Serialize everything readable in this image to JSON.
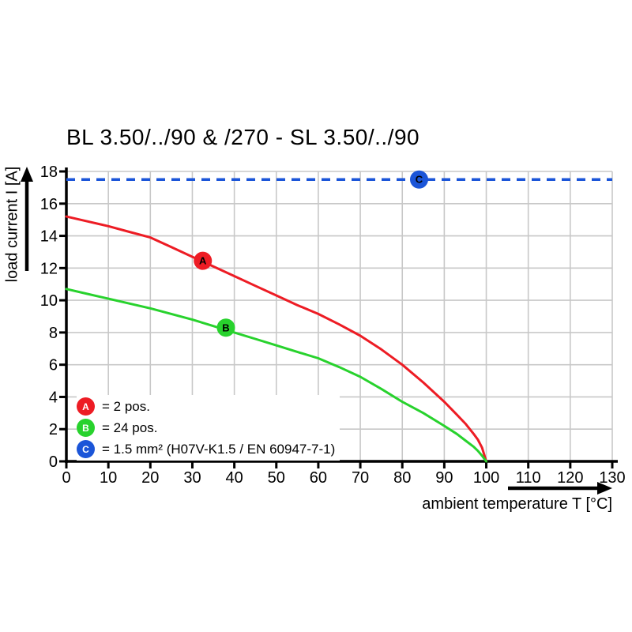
{
  "title": "BL 3.50/../90 & /270 - SL 3.50/../90",
  "colors": {
    "series_a_red": "#ed1c24",
    "series_b_green": "#28d22d",
    "series_c_blue": "#1b55d8",
    "grid": "#c8c8c8",
    "axis": "#000000"
  },
  "chart_data": {
    "type": "line",
    "title": "BL 3.50/../90 & /270 - SL 3.50/../90",
    "xlabel": "ambient temperature T [°C]",
    "ylabel": "load current I [A]",
    "xlim": [
      0,
      130
    ],
    "ylim": [
      0,
      18
    ],
    "xticks": [
      0,
      10,
      20,
      30,
      40,
      50,
      60,
      70,
      80,
      90,
      100,
      110,
      120,
      130
    ],
    "yticks": [
      0,
      2,
      4,
      6,
      8,
      10,
      12,
      14,
      16,
      18
    ],
    "grid": true,
    "legend_position": "lower-left",
    "series": [
      {
        "id": "A",
        "legend_label": "= 2 pos.",
        "color": "#ed1c24",
        "type": "curve",
        "marker": {
          "letter": "A",
          "x": 32.5,
          "y": 12.45
        },
        "points": [
          [
            0,
            15.2
          ],
          [
            5,
            14.9
          ],
          [
            10,
            14.6
          ],
          [
            15,
            14.25
          ],
          [
            20,
            13.9
          ],
          [
            25,
            13.3
          ],
          [
            30,
            12.7
          ],
          [
            35,
            12.1
          ],
          [
            40,
            11.5
          ],
          [
            45,
            10.9
          ],
          [
            50,
            10.3
          ],
          [
            55,
            9.7
          ],
          [
            60,
            9.15
          ],
          [
            65,
            8.5
          ],
          [
            70,
            7.8
          ],
          [
            75,
            6.95
          ],
          [
            80,
            6.0
          ],
          [
            85,
            4.9
          ],
          [
            90,
            3.7
          ],
          [
            93,
            2.9
          ],
          [
            95,
            2.35
          ],
          [
            97,
            1.7
          ],
          [
            98,
            1.35
          ],
          [
            99,
            0.85
          ],
          [
            100,
            0
          ]
        ]
      },
      {
        "id": "B",
        "legend_label": "= 24 pos.",
        "color": "#28d22d",
        "type": "curve",
        "marker": {
          "letter": "B",
          "x": 38,
          "y": 8.3
        },
        "points": [
          [
            0,
            10.7
          ],
          [
            5,
            10.4
          ],
          [
            10,
            10.1
          ],
          [
            15,
            9.8
          ],
          [
            20,
            9.5
          ],
          [
            25,
            9.15
          ],
          [
            30,
            8.8
          ],
          [
            35,
            8.4
          ],
          [
            40,
            8.0
          ],
          [
            45,
            7.6
          ],
          [
            50,
            7.2
          ],
          [
            55,
            6.8
          ],
          [
            60,
            6.4
          ],
          [
            65,
            5.85
          ],
          [
            70,
            5.25
          ],
          [
            75,
            4.5
          ],
          [
            80,
            3.7
          ],
          [
            85,
            3.0
          ],
          [
            90,
            2.2
          ],
          [
            93,
            1.7
          ],
          [
            95,
            1.3
          ],
          [
            97,
            0.9
          ],
          [
            98,
            0.65
          ],
          [
            99,
            0.35
          ],
          [
            100,
            0
          ]
        ]
      },
      {
        "id": "C",
        "legend_label": "= 1.5 mm² (H07V-K1.5 / EN 60947-7-1)",
        "color": "#1b55d8",
        "type": "hline-dashed",
        "value": 17.5,
        "marker": {
          "letter": "C",
          "x": 84,
          "y": 17.5
        }
      }
    ]
  }
}
